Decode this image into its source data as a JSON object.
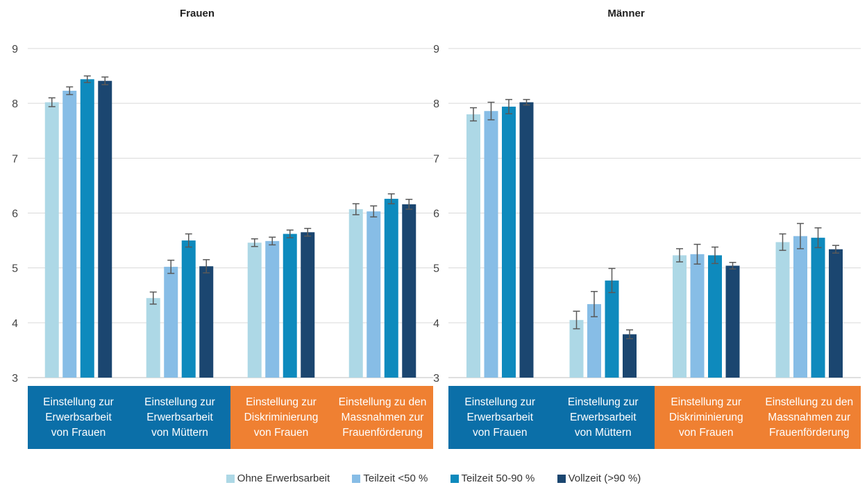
{
  "colors": {
    "series": [
      "#add8e6",
      "#87bde6",
      "#0e8abd",
      "#1b4670"
    ],
    "category_bg": [
      "#0b6fa8",
      "#0b6fa8",
      "#ef8032",
      "#ef8032"
    ],
    "grid": "#d9d9d9",
    "error_bar": "#595959"
  },
  "chart_data": [
    {
      "type": "bar",
      "title": "Frauen",
      "categories": [
        "Einstellung zur Erwerbsarbeit von Frauen",
        "Einstellung zur Erwerbsarbeit von Müttern",
        "Einstellung zur Diskriminierung von Frauen",
        "Einstellung zu den Massnahmen zur Frauenförderung"
      ],
      "category_lines": [
        [
          "Einstellung zur",
          "Erwerbsarbeit",
          "von Frauen"
        ],
        [
          "Einstellung zur",
          "Erwerbsarbeit",
          "von Müttern"
        ],
        [
          "Einstellung zur",
          "Diskriminierung",
          "von Frauen"
        ],
        [
          "Einstellung zu den",
          "Massnahmen zur",
          "Frauenförderung"
        ]
      ],
      "series": [
        {
          "name": "Ohne Erwerbsarbeit",
          "values": [
            8.02,
            4.45,
            5.46,
            6.07
          ],
          "err": [
            0.08,
            0.11,
            0.07,
            0.1
          ]
        },
        {
          "name": "Teilzeit <50 %",
          "values": [
            8.23,
            5.02,
            5.49,
            6.03
          ],
          "err": [
            0.07,
            0.12,
            0.07,
            0.1
          ]
        },
        {
          "name": "Teilzeit 50-90 %",
          "values": [
            8.44,
            5.5,
            5.62,
            6.26
          ],
          "err": [
            0.06,
            0.12,
            0.07,
            0.09
          ]
        },
        {
          "name": "Vollzeit (>90 %)",
          "values": [
            8.41,
            5.03,
            5.65,
            6.16
          ],
          "err": [
            0.07,
            0.12,
            0.07,
            0.09
          ]
        }
      ],
      "ylim": [
        3,
        9
      ],
      "yticks": [
        "3",
        "4",
        "5",
        "6",
        "7",
        "8",
        "9"
      ],
      "grid": true
    },
    {
      "type": "bar",
      "title": "Männer",
      "categories": [
        "Einstellung zur Erwerbsarbeit von Frauen",
        "Einstellung zur Erwerbsarbeit von Müttern",
        "Einstellung zur Diskriminierung von Frauen",
        "Einstellung zu den Massnahmen zur Frauenförderung"
      ],
      "category_lines": [
        [
          "Einstellung zur",
          "Erwerbsarbeit",
          "von Frauen"
        ],
        [
          "Einstellung zur",
          "Erwerbsarbeit",
          "von Müttern"
        ],
        [
          "Einstellung zur",
          "Diskriminierung",
          "von Frauen"
        ],
        [
          "Einstellung zu den",
          "Massnahmen zur",
          "Frauenförderung"
        ]
      ],
      "series": [
        {
          "name": "Ohne Erwerbsarbeit",
          "values": [
            7.8,
            4.05,
            5.23,
            5.47
          ],
          "err": [
            0.12,
            0.16,
            0.12,
            0.15
          ]
        },
        {
          "name": "Teilzeit <50 %",
          "values": [
            7.86,
            4.34,
            5.25,
            5.58
          ],
          "err": [
            0.16,
            0.23,
            0.18,
            0.23
          ]
        },
        {
          "name": "Teilzeit 50-90 %",
          "values": [
            7.94,
            4.77,
            5.23,
            5.55
          ],
          "err": [
            0.13,
            0.22,
            0.15,
            0.18
          ]
        },
        {
          "name": "Vollzeit (>90 %)",
          "values": [
            8.02,
            3.79,
            5.04,
            5.34
          ],
          "err": [
            0.05,
            0.08,
            0.06,
            0.07
          ]
        }
      ],
      "ylim": [
        3,
        9
      ],
      "yticks": [
        "3",
        "4",
        "5",
        "6",
        "7",
        "8",
        "9"
      ],
      "grid": true
    }
  ],
  "legend": [
    {
      "label": "Ohne Erwerbsarbeit"
    },
    {
      "label": "Teilzeit <50 %"
    },
    {
      "label": "Teilzeit 50-90 %"
    },
    {
      "label": "Vollzeit (>90 %)"
    }
  ]
}
